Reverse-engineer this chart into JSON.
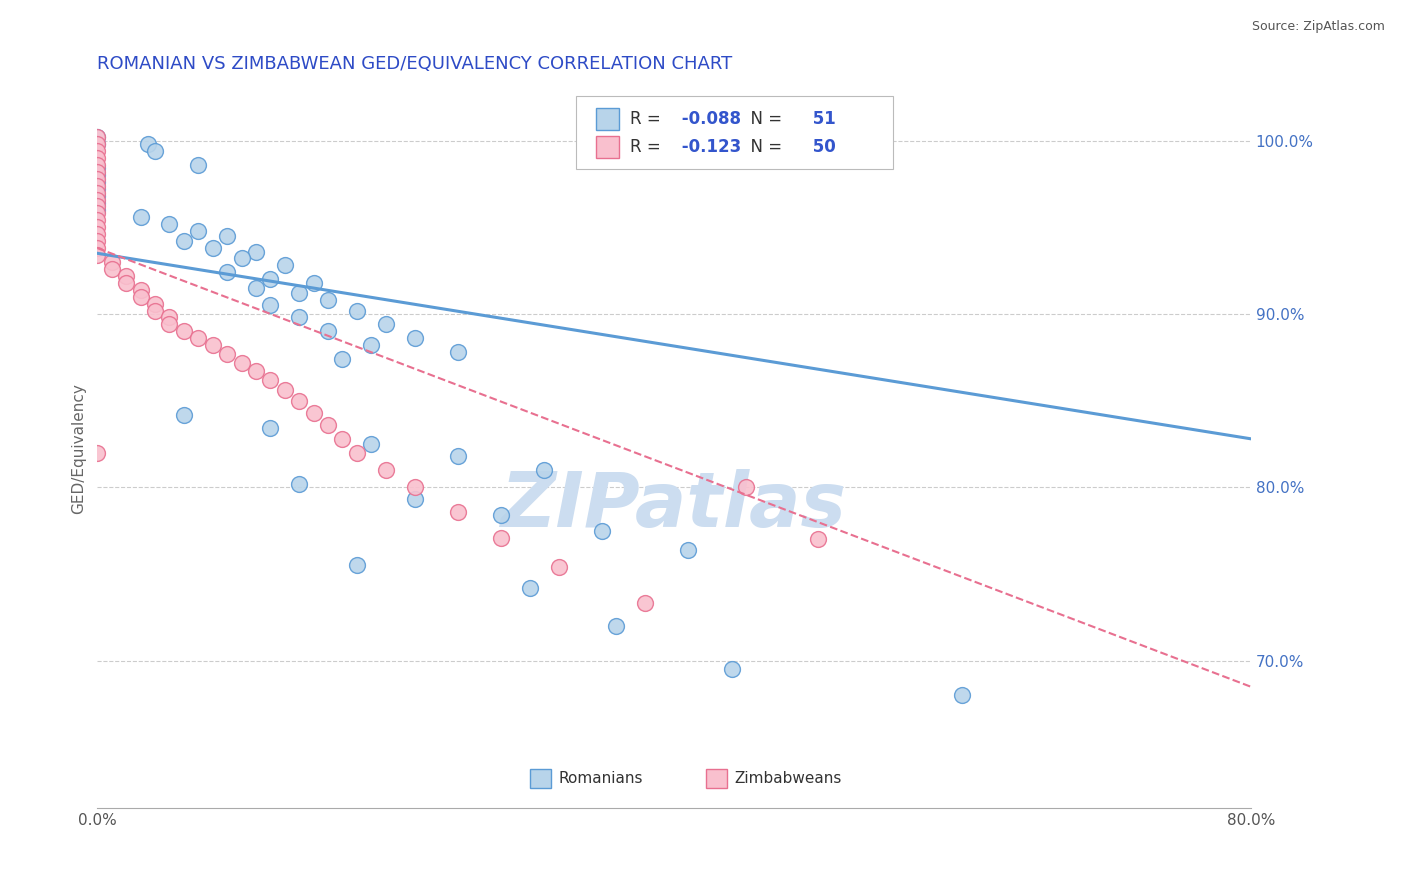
{
  "title": "ROMANIAN VS ZIMBABWEAN GED/EQUIVALENCY CORRELATION CHART",
  "source_text": "Source: ZipAtlas.com",
  "ylabel": "GED/Equivalency",
  "xlim": [
    0.0,
    0.8
  ],
  "ylim": [
    0.615,
    1.03
  ],
  "y_tick_vals_right": [
    0.7,
    0.8,
    0.9,
    1.0
  ],
  "y_tick_labels_right": [
    "70.0%",
    "80.0%",
    "90.0%",
    "100.0%"
  ],
  "romanian_color": "#b8d4ea",
  "zimbabwean_color": "#f9c0ce",
  "romanian_edge": "#5b9bd5",
  "zimbabwean_edge": "#e87090",
  "R_romanian": -0.088,
  "N_romanian": 51,
  "R_zimbabwean": -0.123,
  "N_zimbabwean": 50,
  "legend_label_romanians": "Romanians",
  "legend_label_zimbabweans": "Zimbabweans",
  "watermark": "ZIPatlas",
  "title_color": "#2e4bc6",
  "title_fontsize": 13,
  "axis_label_color": "#666666",
  "right_tick_color": "#4472c4",
  "watermark_color": "#ccddf0",
  "watermark_fontsize": 55,
  "grid_color": "#cccccc",
  "background_color": "#ffffff",
  "dot_size": 130,
  "romanian_data": [
    [
      0.0,
      1.002
    ],
    [
      0.0,
      0.998
    ],
    [
      0.035,
      0.998
    ],
    [
      0.04,
      0.994
    ],
    [
      0.07,
      0.986
    ],
    [
      0.0,
      0.984
    ],
    [
      0.0,
      0.98
    ],
    [
      0.0,
      0.976
    ],
    [
      0.0,
      0.972
    ],
    [
      0.0,
      0.968
    ],
    [
      0.0,
      0.964
    ],
    [
      0.0,
      0.96
    ],
    [
      0.03,
      0.956
    ],
    [
      0.05,
      0.952
    ],
    [
      0.07,
      0.948
    ],
    [
      0.09,
      0.945
    ],
    [
      0.06,
      0.942
    ],
    [
      0.08,
      0.938
    ],
    [
      0.11,
      0.936
    ],
    [
      0.1,
      0.932
    ],
    [
      0.13,
      0.928
    ],
    [
      0.09,
      0.924
    ],
    [
      0.12,
      0.92
    ],
    [
      0.15,
      0.918
    ],
    [
      0.11,
      0.915
    ],
    [
      0.14,
      0.912
    ],
    [
      0.16,
      0.908
    ],
    [
      0.12,
      0.905
    ],
    [
      0.18,
      0.902
    ],
    [
      0.14,
      0.898
    ],
    [
      0.2,
      0.894
    ],
    [
      0.16,
      0.89
    ],
    [
      0.22,
      0.886
    ],
    [
      0.19,
      0.882
    ],
    [
      0.25,
      0.878
    ],
    [
      0.17,
      0.874
    ],
    [
      0.06,
      0.842
    ],
    [
      0.12,
      0.834
    ],
    [
      0.19,
      0.825
    ],
    [
      0.25,
      0.818
    ],
    [
      0.31,
      0.81
    ],
    [
      0.14,
      0.802
    ],
    [
      0.22,
      0.793
    ],
    [
      0.28,
      0.784
    ],
    [
      0.35,
      0.775
    ],
    [
      0.41,
      0.764
    ],
    [
      0.18,
      0.755
    ],
    [
      0.3,
      0.742
    ],
    [
      0.36,
      0.72
    ],
    [
      0.44,
      0.695
    ],
    [
      0.6,
      0.68
    ]
  ],
  "zimbabwean_data": [
    [
      0.0,
      1.002
    ],
    [
      0.0,
      0.998
    ],
    [
      0.0,
      0.994
    ],
    [
      0.0,
      0.99
    ],
    [
      0.0,
      0.986
    ],
    [
      0.0,
      0.982
    ],
    [
      0.0,
      0.978
    ],
    [
      0.0,
      0.974
    ],
    [
      0.0,
      0.97
    ],
    [
      0.0,
      0.966
    ],
    [
      0.0,
      0.962
    ],
    [
      0.0,
      0.958
    ],
    [
      0.0,
      0.954
    ],
    [
      0.0,
      0.95
    ],
    [
      0.0,
      0.946
    ],
    [
      0.0,
      0.942
    ],
    [
      0.0,
      0.938
    ],
    [
      0.0,
      0.934
    ],
    [
      0.01,
      0.93
    ],
    [
      0.01,
      0.926
    ],
    [
      0.02,
      0.922
    ],
    [
      0.02,
      0.918
    ],
    [
      0.03,
      0.914
    ],
    [
      0.03,
      0.91
    ],
    [
      0.04,
      0.906
    ],
    [
      0.04,
      0.902
    ],
    [
      0.05,
      0.898
    ],
    [
      0.05,
      0.894
    ],
    [
      0.06,
      0.89
    ],
    [
      0.07,
      0.886
    ],
    [
      0.08,
      0.882
    ],
    [
      0.09,
      0.877
    ],
    [
      0.1,
      0.872
    ],
    [
      0.11,
      0.867
    ],
    [
      0.12,
      0.862
    ],
    [
      0.13,
      0.856
    ],
    [
      0.14,
      0.85
    ],
    [
      0.15,
      0.843
    ],
    [
      0.16,
      0.836
    ],
    [
      0.17,
      0.828
    ],
    [
      0.18,
      0.82
    ],
    [
      0.2,
      0.81
    ],
    [
      0.22,
      0.8
    ],
    [
      0.25,
      0.786
    ],
    [
      0.28,
      0.771
    ],
    [
      0.32,
      0.754
    ],
    [
      0.38,
      0.733
    ],
    [
      0.45,
      0.8
    ],
    [
      0.5,
      0.77
    ],
    [
      0.0,
      0.82
    ]
  ]
}
